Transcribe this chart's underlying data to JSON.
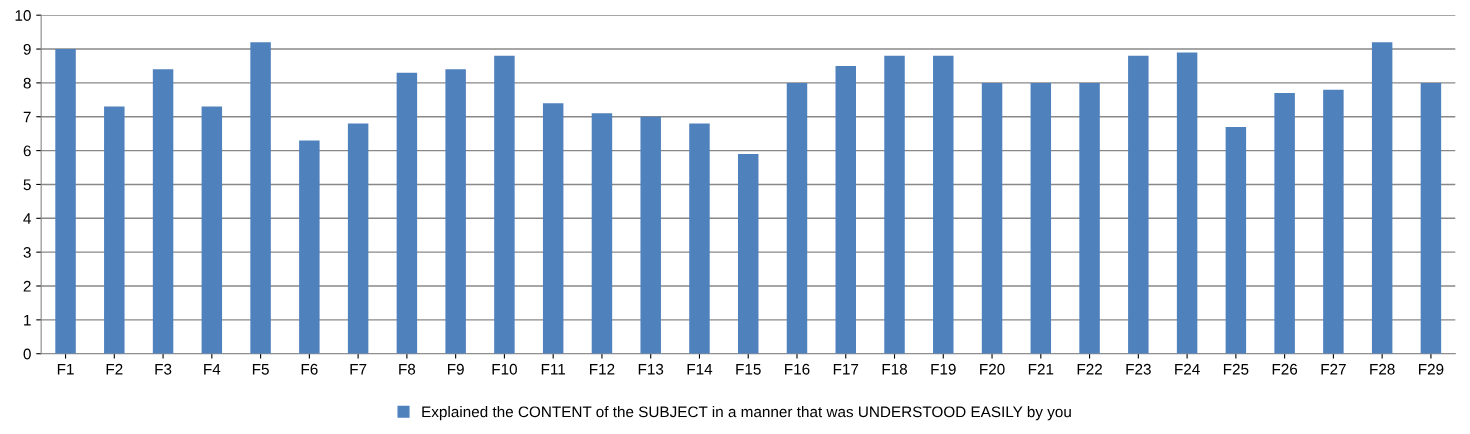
{
  "chart_data": {
    "type": "bar",
    "categories": [
      "F1",
      "F2",
      "F3",
      "F4",
      "F5",
      "F6",
      "F7",
      "F8",
      "F9",
      "F10",
      "F11",
      "F12",
      "F13",
      "F14",
      "F15",
      "F16",
      "F17",
      "F18",
      "F19",
      "F20",
      "F21",
      "F22",
      "F23",
      "F24",
      "F25",
      "F26",
      "F27",
      "F28",
      "F29"
    ],
    "series": [
      {
        "name": "Explained the CONTENT of the SUBJECT in a manner that was UNDERSTOOD EASILY by you",
        "color": "#4f81bd",
        "values": [
          9.0,
          7.3,
          8.4,
          7.3,
          9.2,
          6.3,
          6.8,
          8.3,
          8.4,
          8.8,
          7.4,
          7.1,
          7.0,
          6.8,
          5.9,
          8.0,
          8.5,
          8.8,
          8.8,
          8.0,
          8.0,
          8.0,
          8.8,
          8.9,
          6.7,
          7.7,
          7.8,
          9.2,
          8.0
        ]
      }
    ],
    "ylim": [
      0,
      10
    ],
    "yticks": [
      0,
      1,
      2,
      3,
      4,
      5,
      6,
      7,
      8,
      9,
      10
    ],
    "grid": "y",
    "legend": "bottom"
  }
}
